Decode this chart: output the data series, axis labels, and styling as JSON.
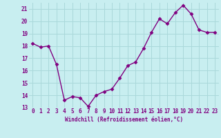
{
  "x": [
    0,
    1,
    2,
    3,
    4,
    5,
    6,
    7,
    8,
    9,
    10,
    11,
    12,
    13,
    14,
    15,
    16,
    17,
    18,
    19,
    20,
    21,
    22,
    23
  ],
  "y": [
    18.2,
    17.9,
    18.0,
    16.5,
    13.6,
    13.9,
    13.8,
    13.1,
    14.0,
    14.3,
    14.5,
    15.4,
    16.4,
    16.7,
    17.8,
    19.1,
    20.2,
    19.8,
    20.7,
    21.3,
    20.6,
    19.3,
    19.1,
    19.1
  ],
  "line_color": "#800080",
  "marker": "D",
  "marker_size": 2.5,
  "bg_color": "#c8eef0",
  "grid_color": "#aad8da",
  "xlabel": "Windchill (Refroidissement éolien,°C)",
  "xlim": [
    -0.5,
    23.5
  ],
  "ylim": [
    13,
    21.5
  ],
  "yticks": [
    13,
    14,
    15,
    16,
    17,
    18,
    19,
    20,
    21
  ],
  "xtick_labels": [
    "0",
    "1",
    "2",
    "3",
    "4",
    "5",
    "6",
    "7",
    "8",
    "9",
    "10",
    "11",
    "12",
    "13",
    "14",
    "15",
    "16",
    "17",
    "18",
    "19",
    "20",
    "21",
    "22",
    "23"
  ],
  "label_fontsize": 5.5,
  "tick_fontsize": 5.5,
  "line_width": 1.0
}
